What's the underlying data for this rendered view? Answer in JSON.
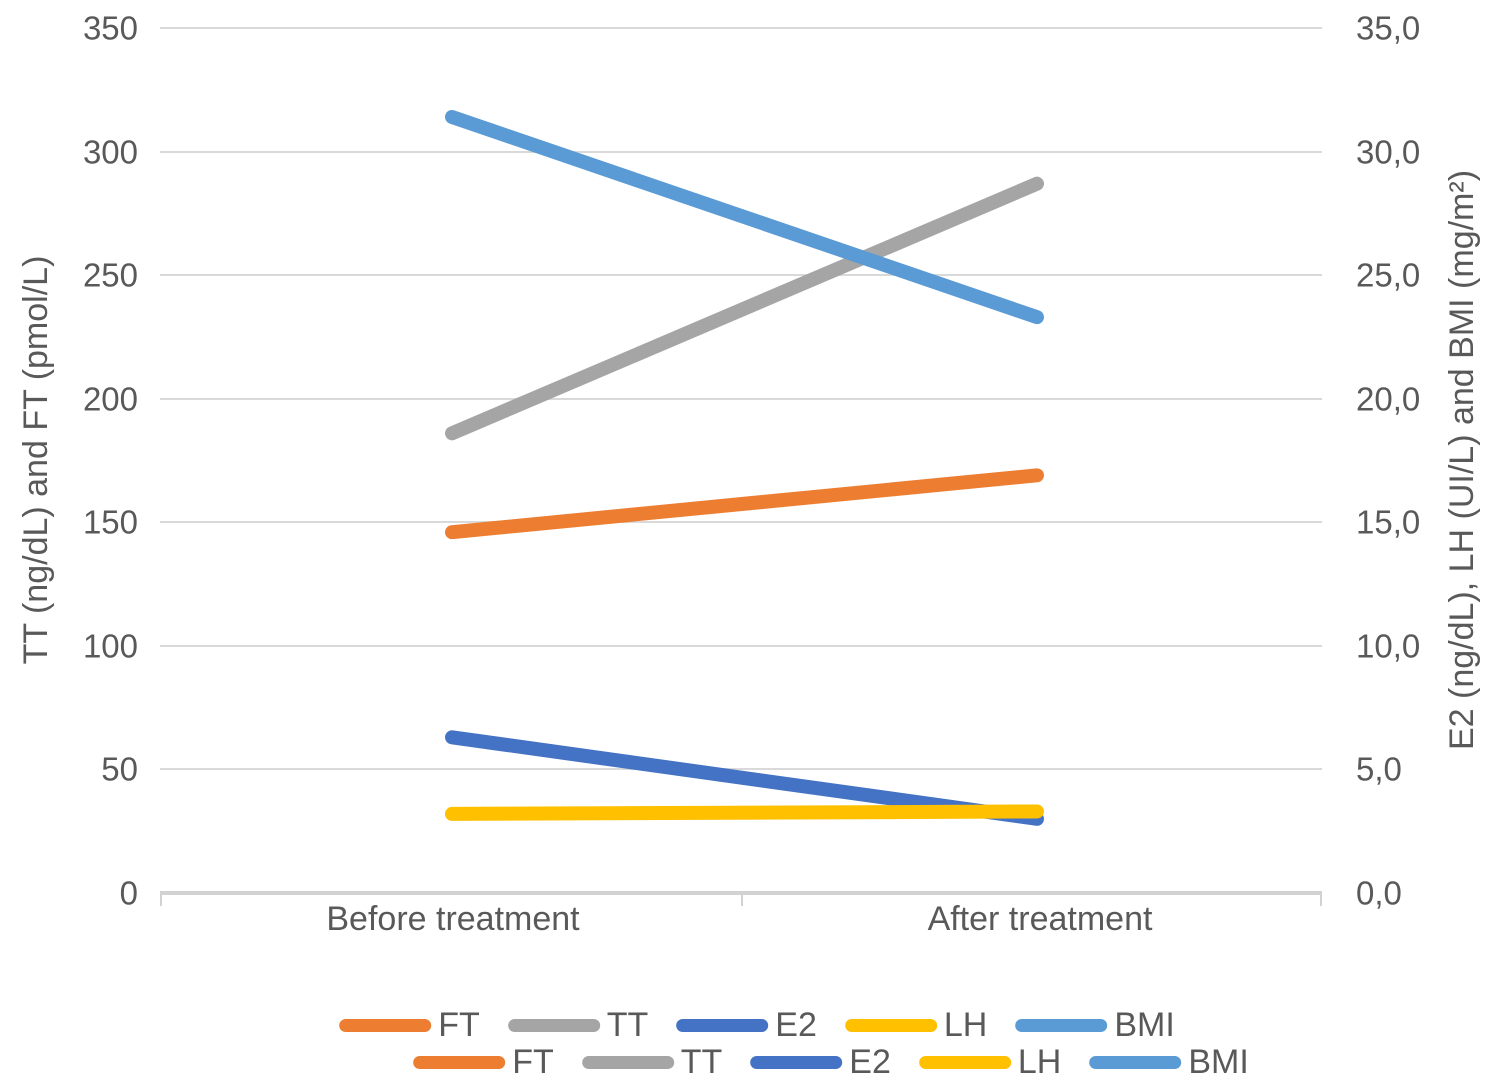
{
  "chart_data": {
    "type": "line",
    "categories": [
      "Before treatment",
      "After treatment"
    ],
    "series": [
      {
        "name": "FT",
        "axis": "left",
        "color": "#ED7D31",
        "values": [
          146,
          169
        ]
      },
      {
        "name": "TT",
        "axis": "left",
        "color": "#A5A5A5",
        "values": [
          186,
          287
        ]
      },
      {
        "name": "E2",
        "axis": "right",
        "color": "#4472C4",
        "values": [
          6.3,
          3.0
        ]
      },
      {
        "name": "LH",
        "axis": "right",
        "color": "#FFC000",
        "values": [
          3.2,
          3.3
        ]
      },
      {
        "name": "BMI",
        "axis": "right",
        "color": "#5B9BD5",
        "values": [
          31.4,
          23.3
        ]
      }
    ],
    "left_axis": {
      "title": "TT (ng/dL) and FT (pmol/L)",
      "min": 0,
      "max": 350,
      "step": 50,
      "tick_labels_top_to_bottom": [
        "350",
        "300",
        "250",
        "200",
        "150",
        "100",
        "50",
        "0"
      ]
    },
    "right_axis": {
      "title": "E2 (ng/dL), LH (UI/L) and BMI (mg/m²)",
      "min": 0,
      "max": 35,
      "step": 5,
      "tick_labels_top_to_bottom": [
        "35,0",
        "30,0",
        "25,0",
        "20,0",
        "15,0",
        "10,0",
        "5,0",
        "0,0"
      ]
    },
    "grid": true,
    "legend_position": "bottom",
    "legend_labels": [
      "FT",
      "TT",
      "E2",
      "LH",
      "BMI"
    ],
    "colors": {
      "axis_text": "#595959",
      "gridline": "#D9D9D9"
    }
  }
}
